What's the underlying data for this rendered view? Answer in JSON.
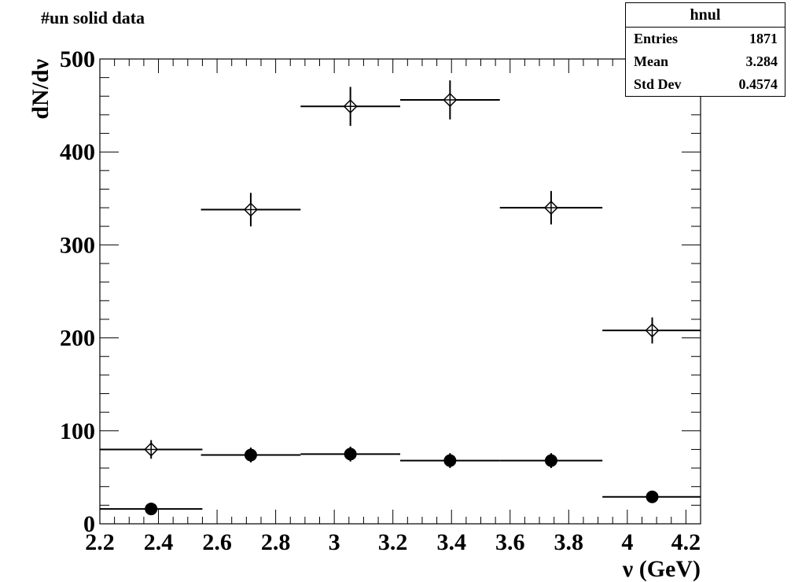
{
  "title": "#un solid data",
  "stats": {
    "name": "hnul",
    "entries_label": "Entries",
    "entries": "1871",
    "mean_label": "Mean",
    "mean": "3.284",
    "stddev_label": "Std Dev",
    "stddev": "0.4574"
  },
  "chart_data": {
    "type": "scatter",
    "title": "#un solid data",
    "xlabel": "ν (GeV)",
    "ylabel": "dN/dν",
    "xlim": [
      2.2,
      4.25
    ],
    "ylim": [
      0,
      500
    ],
    "x_ticks": [
      "2.2",
      "2.4",
      "2.6",
      "2.8",
      "3",
      "3.2",
      "3.4",
      "3.6",
      "3.8",
      "4",
      "4.2"
    ],
    "y_ticks": [
      "0",
      "100",
      "200",
      "300",
      "400",
      "500"
    ],
    "grid": false,
    "legend": "none",
    "series": [
      {
        "marker": "open-diamond",
        "x": [
          2.375,
          2.715,
          3.055,
          3.395,
          3.74,
          4.085
        ],
        "xerr": [
          0.175,
          0.17,
          0.17,
          0.17,
          0.175,
          0.17
        ],
        "y": [
          80,
          338,
          449,
          456,
          340,
          208
        ],
        "yerr": [
          10,
          18,
          21,
          21,
          18,
          14
        ]
      },
      {
        "marker": "filled-circle",
        "x": [
          2.375,
          2.715,
          3.055,
          3.395,
          3.74,
          4.085
        ],
        "xerr": [
          0.175,
          0.17,
          0.17,
          0.17,
          0.175,
          0.17
        ],
        "y": [
          16,
          74,
          75,
          68,
          68,
          29
        ],
        "yerr": [
          4,
          8,
          8,
          8,
          8,
          5
        ]
      }
    ]
  }
}
